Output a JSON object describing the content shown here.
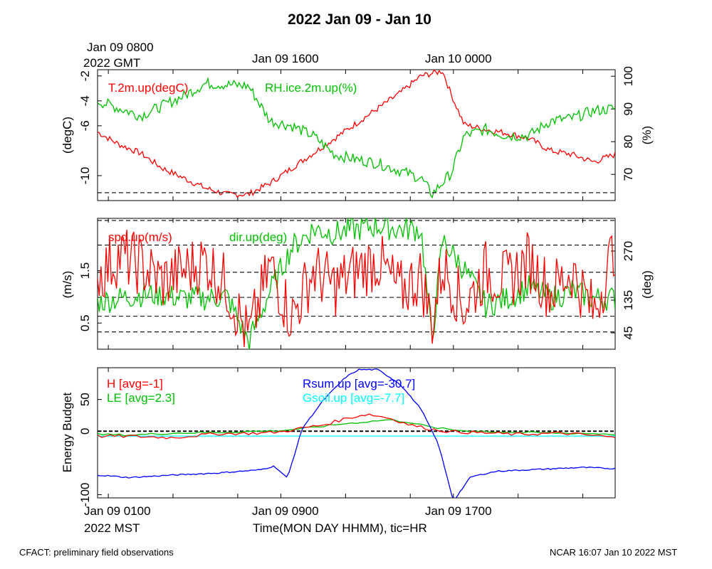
{
  "page": {
    "title": "2022 Jan 09 - Jan 10",
    "top_time_axis": {
      "first_label_line1": "Jan 09 0800",
      "first_label_line2": "2022 GMT",
      "labels": [
        "Jan 09 1600",
        "Jan 10 0000"
      ]
    },
    "bottom_time_axis": {
      "labels": [
        "Jan 09 0100",
        "Jan 09 0900",
        "Jan 09 1700"
      ],
      "tz_label": "2022 MST",
      "axis_title": "Time(MON DAY HHMM), tic=HR"
    },
    "footer_left": "CFACT: preliminary field observations",
    "footer_right": "NCAR 16:07 Jan 10 2022 MST"
  },
  "colors": {
    "red": "#ff0000",
    "green": "#00c000",
    "blue": "#0000ff",
    "cyan": "#00ffff",
    "black": "#000000"
  },
  "chart_data": [
    {
      "type": "line",
      "x_unit": "hours since Jan 09 0000 MST",
      "xlim": [
        0.5,
        24.5
      ],
      "yaxes": {
        "left": {
          "label": "(degC)",
          "ylim": [
            -12,
            -1.5
          ],
          "ticks": [
            -2,
            -4,
            -6,
            -10
          ]
        },
        "right": {
          "label": "(%)",
          "ylim": [
            62,
            102
          ],
          "ticks": [
            100,
            90,
            80,
            70
          ]
        }
      },
      "series": [
        {
          "name": "T.2m.up(degC)",
          "axis": "left",
          "color": "#ff0000",
          "x": [
            0.5,
            1.5,
            2.5,
            3.5,
            4.5,
            5.5,
            6.5,
            7.5,
            8.5,
            9.5,
            10.5,
            11.5,
            12.5,
            13.5,
            14.5,
            15.5,
            16.5,
            16.9,
            17.5,
            18.5,
            19.5,
            20.5,
            21.5,
            22.5,
            23.5,
            24.5
          ],
          "y": [
            -6.5,
            -7.5,
            -8.2,
            -9.4,
            -10.2,
            -11.0,
            -11.5,
            -11.5,
            -10.6,
            -9.4,
            -8.2,
            -7.0,
            -5.8,
            -4.6,
            -3.4,
            -2.0,
            -1.6,
            -3.5,
            -5.9,
            -6.3,
            -6.6,
            -7.0,
            -8.0,
            -8.3,
            -8.9,
            -8.3
          ]
        },
        {
          "name": "RH.ice.2m.up(%)",
          "axis": "left",
          "color": "#00c000",
          "x": [
            0.5,
            1.5,
            2.5,
            3.5,
            4.5,
            5.5,
            6.5,
            7.5,
            8.5,
            9.5,
            10.5,
            11.5,
            12.5,
            13.5,
            14.5,
            15.5,
            16.0,
            16.9,
            17.5,
            18.5,
            19.5,
            20.5,
            21.5,
            22.5,
            23.5,
            24.5
          ],
          "y": [
            -4.0,
            -4.6,
            -5.2,
            -4.4,
            -3.6,
            -2.6,
            -2.7,
            -2.8,
            -5.6,
            -6.0,
            -6.8,
            -8.3,
            -8.7,
            -9.0,
            -9.6,
            -10.2,
            -11.5,
            -9.8,
            -6.8,
            -6.3,
            -6.8,
            -6.8,
            -5.6,
            -5.4,
            -4.8,
            -4.6
          ]
        }
      ],
      "legend": [
        "T.2m.up(degC)",
        "RH.ice.2m.up(%)"
      ]
    },
    {
      "type": "line",
      "x_unit": "hours since Jan 09 0000 MST",
      "xlim": [
        0.5,
        24.5
      ],
      "yaxes": {
        "left": {
          "label": "(m/s)",
          "ylim": [
            0,
            2.5
          ],
          "ticks": [
            0.5,
            1.5
          ]
        },
        "right": {
          "label": "(deg)",
          "ylim": [
            0,
            360
          ],
          "ticks": [
            45,
            135,
            270
          ]
        }
      },
      "reference_lines_dashed": [
        0.33,
        0.63,
        0.99,
        1.47,
        1.99,
        2.46,
        2.99
      ],
      "series": [
        {
          "name": "spd.up(m/s)",
          "axis": "left",
          "color": "#ff0000",
          "x": [
            0.5,
            1.5,
            2.5,
            3.5,
            4.5,
            5.5,
            6.5,
            7.5,
            8.5,
            9.5,
            10.5,
            11.5,
            12.5,
            13.5,
            14.5,
            15.5,
            16.0,
            16.5,
            17.5,
            18.5,
            19.5,
            20.5,
            21.5,
            22.5,
            23.5,
            24.5
          ],
          "y": [
            1.4,
            1.8,
            1.6,
            1.3,
            1.5,
            1.7,
            1.2,
            0.2,
            1.6,
            0.6,
            1.5,
            1.2,
            1.5,
            1.7,
            1.1,
            1.4,
            0.5,
            1.6,
            0.8,
            1.5,
            1.3,
            1.7,
            1.1,
            1.5,
            0.7,
            2.0
          ]
        },
        {
          "name": "dir.up(deg)",
          "axis": "right",
          "color": "#00c000",
          "x": [
            0.5,
            1.5,
            2.5,
            3.5,
            4.5,
            5.5,
            6.5,
            7.5,
            8.5,
            9.5,
            10.5,
            11.5,
            12.5,
            13.5,
            14.5,
            15.5,
            16.0,
            16.5,
            17.5,
            18.5,
            19.5,
            20.5,
            21.5,
            22.5,
            23.5,
            24.5
          ],
          "y": [
            130,
            140,
            150,
            150,
            140,
            140,
            145,
            20,
            160,
            280,
            330,
            320,
            330,
            340,
            330,
            330,
            20,
            300,
            220,
            120,
            140,
            170,
            140,
            160,
            140,
            140
          ]
        }
      ],
      "legend": [
        "spd.up(m/s)",
        "dir.up(deg)"
      ]
    },
    {
      "type": "line",
      "x_unit": "hours since Jan 09 0000 MST",
      "xlim": [
        0.5,
        24.5
      ],
      "yaxes": {
        "left": {
          "label": "Energy Budget",
          "ylim": [
            -105,
            100
          ],
          "ticks": [
            50,
            0,
            -100
          ]
        }
      },
      "reference_lines_dashed": [
        0
      ],
      "series": [
        {
          "name": "H [avg=-1]",
          "color": "#ff0000",
          "x": [
            0.5,
            2,
            4,
            6,
            8,
            9,
            10,
            11,
            12,
            13,
            14,
            15,
            16,
            17,
            18,
            20,
            22,
            24,
            24.5
          ],
          "y": [
            -8,
            -8,
            -10,
            -4,
            -3,
            -1,
            5,
            10,
            20,
            27,
            21,
            10,
            3,
            -1,
            -2,
            -5,
            -3,
            -8,
            -11
          ]
        },
        {
          "name": "LE [avg=2.3]",
          "color": "#00c000",
          "x": [
            0.5,
            2,
            4,
            6,
            8,
            9,
            10,
            11,
            12,
            13,
            14,
            15,
            16,
            17,
            18,
            20,
            22,
            24,
            24.5
          ],
          "y": [
            -5,
            -6,
            -3,
            -2,
            0,
            1,
            4,
            8,
            12,
            15,
            18,
            14,
            6,
            2,
            0,
            -2,
            -3,
            -4,
            -5
          ]
        },
        {
          "name": "Rsum.up [avg=-30.7]",
          "color": "#0000ff",
          "x": [
            0.5,
            2,
            4,
            6,
            8,
            8.7,
            9.3,
            10,
            11,
            12,
            12.6,
            13.5,
            14.5,
            15.5,
            16.3,
            17,
            17.8,
            19,
            21,
            23,
            24.5
          ],
          "y": [
            -69,
            -73,
            -69,
            -66,
            -61,
            -55,
            -74,
            5,
            50,
            85,
            97,
            97,
            75,
            35,
            -20,
            -110,
            -72,
            -63,
            -60,
            -57,
            -59
          ]
        },
        {
          "name": "Gsoil.up [avg=-7.7]",
          "color": "#00ffff",
          "x": [
            0.5,
            24.5
          ],
          "y": [
            -7.7,
            -7.7
          ]
        }
      ],
      "legend": [
        "H [avg=-1]",
        "LE [avg=2.3]",
        "Rsum.up [avg=-30.7]",
        "Gsoil.up [avg=-7.7]"
      ]
    }
  ]
}
